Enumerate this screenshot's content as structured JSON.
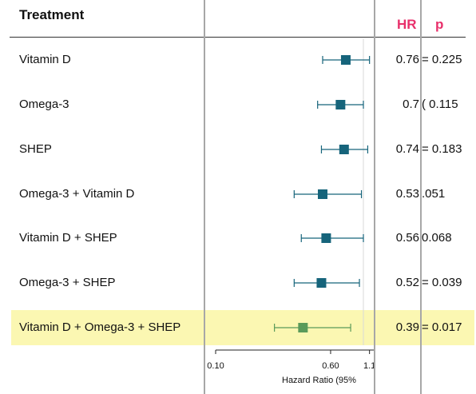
{
  "header": {
    "title": "Treatment",
    "hr_label": "HR",
    "p_label": "p"
  },
  "x_axis": {
    "ticks": [
      "0.10",
      "0.60",
      "1.1"
    ],
    "label": "Hazard Ratio (95%"
  },
  "colors": {
    "marker": "#16647b",
    "highlight_marker": "#5a9a5a",
    "highlight_bg": "#fbf7b2",
    "header_accent": "#e8306b"
  },
  "chart_data": {
    "type": "forest",
    "x_scale": "log",
    "rows": [
      {
        "label": "Vitamin D",
        "hr": 0.76,
        "ci_low": 0.53,
        "ci_high": 1.1,
        "hr_text": "0.76",
        "p_text": "= 0.225",
        "highlight": false
      },
      {
        "label": "Omega-3",
        "hr": 0.7,
        "ci_low": 0.49,
        "ci_high": 1.0,
        "hr_text": "0.7",
        "p_text": "( 0.115",
        "highlight": false
      },
      {
        "label": "SHEP",
        "hr": 0.74,
        "ci_low": 0.52,
        "ci_high": 1.07,
        "hr_text": "0.74",
        "p_text": "= 0.183",
        "highlight": false
      },
      {
        "label": "Omega-3 + Vitamin D",
        "hr": 0.53,
        "ci_low": 0.34,
        "ci_high": 0.97,
        "hr_text": "0.53",
        "p_text": ".051",
        "highlight": false
      },
      {
        "label": "Vitamin D + SHEP",
        "hr": 0.56,
        "ci_low": 0.38,
        "ci_high": 1.0,
        "hr_text": "0.56",
        "p_text": "0.068",
        "highlight": false
      },
      {
        "label": "Omega-3 + SHEP",
        "hr": 0.52,
        "ci_low": 0.34,
        "ci_high": 0.94,
        "hr_text": "0.52",
        "p_text": "= 0.039",
        "highlight": false
      },
      {
        "label": "Vitamin D + Omega-3 + SHEP",
        "hr": 0.39,
        "ci_low": 0.25,
        "ci_high": 0.82,
        "hr_text": "0.39",
        "p_text": "= 0.017",
        "highlight": true
      }
    ]
  }
}
